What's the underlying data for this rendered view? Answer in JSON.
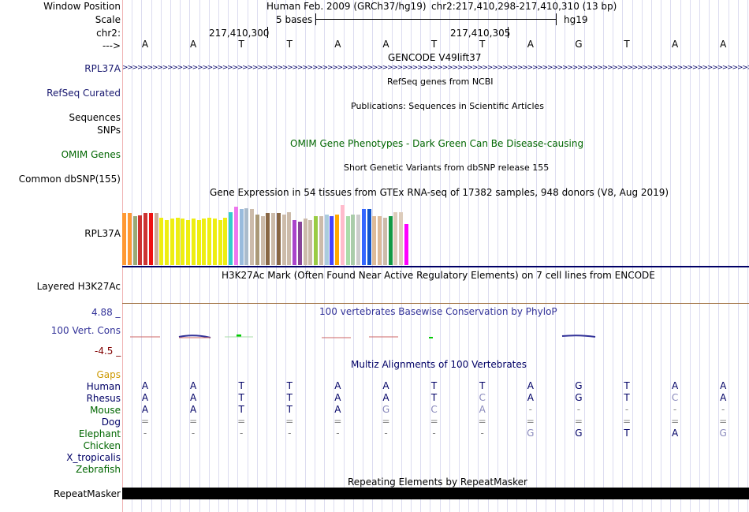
{
  "header": {
    "window_position_label": "Window Position",
    "scale_label": "Scale",
    "chrom_label": "chr2:",
    "arrow_label": "--->",
    "assembly_text": "Human Feb. 2009 (GRCh37/hg19)",
    "position_text": "chr2:217,410,298-217,410,310 (13 bp)",
    "scale_text": "5 bases",
    "db_text": "hg19",
    "coord1": "217,410,300",
    "coord2": "217,410,305"
  },
  "bases": [
    "A",
    "A",
    "T",
    "T",
    "A",
    "A",
    "T",
    "T",
    "A",
    "G",
    "T",
    "A",
    "A"
  ],
  "tracks": {
    "gencode": {
      "title": "GENCODE V49lift37",
      "label": "RPL37A",
      "arrows": ">>>>>>>>>>>>>>>>>>>>>>>>>>>>>>>>>>>>>>>>>>>>>>>>>>>>>>>>>>>>>>>>>>>>>>>>>>>>>>>>>>>>>>>>>>>>>>>>>>>>>>>>>>>>>>>>>>>>>>>>>>>>>>>>>>>>>>>>>>>>>>>>>>>>>>>>>>>>>"
    },
    "refseq": {
      "title": "RefSeq genes from NCBI",
      "label": "RefSeq Curated"
    },
    "publications": {
      "title": "Publications: Sequences in Scientific Articles",
      "label1": "Sequences",
      "label2": "SNPs"
    },
    "omim": {
      "title": "OMIM Gene Phenotypes - Dark Green Can Be Disease-causing",
      "label": "OMIM Genes"
    },
    "dbsnp": {
      "title": "Short Genetic Variants from dbSNP release 155",
      "label": "Common dbSNP(155)"
    },
    "gtex": {
      "title": "Gene Expression in 54 tissues from GTEx RNA-seq of 17382 samples, 948 donors (V8, Aug 2019)",
      "label": "RPL37A"
    },
    "h3k27ac": {
      "title": "H3K27Ac Mark (Often Found Near Active Regulatory Elements) on 7 cell lines from ENCODE",
      "label": "Layered H3K27Ac"
    },
    "conservation": {
      "title": "100 vertebrates Basewise Conservation by PhyloP",
      "label": "100 Vert. Cons",
      "max": "4.88 _",
      "min": "-4.5 _"
    },
    "multiz": {
      "title": "Multiz Alignments of 100 Vertebrates",
      "gaps_label": "Gaps"
    },
    "repeatmasker": {
      "title": "Repeating Elements by RepeatMasker",
      "label": "RepeatMasker"
    }
  },
  "gtex_values": [
    {
      "c": "#ff9933",
      "v": 0.78
    },
    {
      "c": "#ff9933",
      "v": 0.78
    },
    {
      "c": "#99aa77",
      "v": 0.74
    },
    {
      "c": "#cc3333",
      "v": 0.75
    },
    {
      "c": "#cc3333",
      "v": 0.78
    },
    {
      "c": "#ee1111",
      "v": 0.78
    },
    {
      "c": "#ccaa99",
      "v": 0.78
    },
    {
      "c": "#eeee11",
      "v": 0.72
    },
    {
      "c": "#eeee11",
      "v": 0.68
    },
    {
      "c": "#eeee11",
      "v": 0.7
    },
    {
      "c": "#eeee11",
      "v": 0.72
    },
    {
      "c": "#eeee11",
      "v": 0.7
    },
    {
      "c": "#eeee11",
      "v": 0.68
    },
    {
      "c": "#eeee11",
      "v": 0.7
    },
    {
      "c": "#eeee11",
      "v": 0.68
    },
    {
      "c": "#eeee11",
      "v": 0.7
    },
    {
      "c": "#eeee11",
      "v": 0.72
    },
    {
      "c": "#eeee11",
      "v": 0.7
    },
    {
      "c": "#eeee11",
      "v": 0.68
    },
    {
      "c": "#eeee11",
      "v": 0.72
    },
    {
      "c": "#33cccc",
      "v": 0.8
    },
    {
      "c": "#ee77ee",
      "v": 0.88
    },
    {
      "c": "#99bbdd",
      "v": 0.85
    },
    {
      "c": "#aabbcc",
      "v": 0.86
    },
    {
      "c": "#ccbbaa",
      "v": 0.85
    },
    {
      "c": "#aa9977",
      "v": 0.76
    },
    {
      "c": "#ccbbaa",
      "v": 0.74
    },
    {
      "c": "#886644",
      "v": 0.78
    },
    {
      "c": "#ccbbaa",
      "v": 0.78
    },
    {
      "c": "#886644",
      "v": 0.78
    },
    {
      "c": "#ccbbaa",
      "v": 0.76
    },
    {
      "c": "#ccbbaa",
      "v": 0.8
    },
    {
      "c": "#aa44cc",
      "v": 0.68
    },
    {
      "c": "#884499",
      "v": 0.66
    },
    {
      "c": "#ccbbaa",
      "v": 0.7
    },
    {
      "c": "#ccbbaa",
      "v": 0.68
    },
    {
      "c": "#99cc44",
      "v": 0.74
    },
    {
      "c": "#ccbbaa",
      "v": 0.74
    },
    {
      "c": "#aaccdd",
      "v": 0.76
    },
    {
      "c": "#4444ff",
      "v": 0.74
    },
    {
      "c": "#ffaa00",
      "v": 0.76
    },
    {
      "c": "#ffbbcc",
      "v": 0.9
    },
    {
      "c": "#aaddaa",
      "v": 0.74
    },
    {
      "c": "#aaccaa",
      "v": 0.76
    },
    {
      "c": "#cccccc",
      "v": 0.76
    },
    {
      "c": "#3366ff",
      "v": 0.84
    },
    {
      "c": "#1155cc",
      "v": 0.84
    },
    {
      "c": "#ddbb99",
      "v": 0.74
    },
    {
      "c": "#ddbb99",
      "v": 0.74
    },
    {
      "c": "#ccbbaa",
      "v": 0.72
    },
    {
      "c": "#119944",
      "v": 0.74
    },
    {
      "c": "#ddccbb",
      "v": 0.8
    },
    {
      "c": "#ddccbb",
      "v": 0.8
    },
    {
      "c": "#ff00ff",
      "v": 0.62
    }
  ],
  "alignments": [
    {
      "species": "Human",
      "color": "#000066",
      "seq": [
        "A",
        "A",
        "T",
        "T",
        "A",
        "A",
        "T",
        "T",
        "A",
        "G",
        "T",
        "A",
        "A"
      ]
    },
    {
      "species": "Rhesus",
      "color": "#000066",
      "seq": [
        "A",
        "A",
        "T",
        "T",
        "A",
        "A",
        "T",
        "C",
        "A",
        "G",
        "T",
        "C",
        "A"
      ]
    },
    {
      "species": "Mouse",
      "color": "#006600",
      "seq": [
        "A",
        "A",
        "T",
        "T",
        "A",
        "G",
        "C",
        "A",
        "-",
        "-",
        "-",
        "-",
        "-"
      ]
    },
    {
      "species": "Dog",
      "color": "#000066",
      "seq": [
        "=",
        "=",
        "=",
        "=",
        "=",
        "=",
        "=",
        "=",
        "=",
        "=",
        "=",
        "=",
        "="
      ]
    },
    {
      "species": "Elephant",
      "color": "#006600",
      "seq": [
        "-",
        "-",
        "-",
        "-",
        "-",
        "-",
        "-",
        "-",
        "G",
        "G",
        "T",
        "A",
        "G"
      ]
    },
    {
      "species": "Chicken",
      "color": "#006600",
      "seq": []
    },
    {
      "species": "X_tropicalis",
      "color": "#000066",
      "seq": []
    },
    {
      "species": "Zebrafish",
      "color": "#006600",
      "seq": []
    }
  ],
  "colors": {
    "navy": "#000066",
    "green": "#006600",
    "link_blue": "#191970",
    "cons_blue": "#333399",
    "neg_red": "#800000",
    "gaps_orange": "#cc9900",
    "h3k_rule": "#996633"
  }
}
